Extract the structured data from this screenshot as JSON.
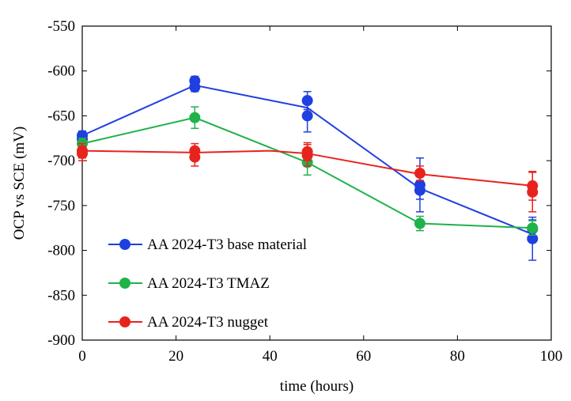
{
  "chart_data": {
    "type": "line",
    "xlabel": "time (hours)",
    "ylabel": "OCP vs SCE (mV)",
    "xlim": [
      0,
      100
    ],
    "ylim": [
      -900,
      -550
    ],
    "xticks": [
      0,
      20,
      40,
      60,
      80,
      100
    ],
    "yticks": [
      -900,
      -850,
      -800,
      -750,
      -700,
      -650,
      -600,
      -550
    ],
    "grid": false,
    "legend_position": "bottom-left",
    "series": [
      {
        "name": "AA 2024-T3 base material",
        "color": "#1f3fe0",
        "line": [
          [
            0,
            -672
          ],
          [
            24,
            -616
          ],
          [
            48,
            -641
          ],
          [
            72,
            -731
          ],
          [
            96,
            -782
          ]
        ],
        "points": [
          {
            "x": 0,
            "y": -672,
            "err": 5
          },
          {
            "x": 0,
            "y": -676,
            "err": 5
          },
          {
            "x": 24,
            "y": -611,
            "err": 5
          },
          {
            "x": 24,
            "y": -618,
            "err": 5
          },
          {
            "x": 48,
            "y": -633,
            "err": 10
          },
          {
            "x": 48,
            "y": -650,
            "err": 18
          },
          {
            "x": 72,
            "y": -727,
            "err": 30
          },
          {
            "x": 72,
            "y": -733,
            "err": 10
          },
          {
            "x": 96,
            "y": -776,
            "err": 10
          },
          {
            "x": 96,
            "y": -787,
            "err": 24
          }
        ]
      },
      {
        "name": "AA 2024-T3 TMAZ",
        "color": "#1fb24a",
        "line": [
          [
            0,
            -681
          ],
          [
            24,
            -652
          ],
          [
            48,
            -702
          ],
          [
            72,
            -770
          ],
          [
            96,
            -775
          ]
        ],
        "points": [
          {
            "x": 0,
            "y": -681,
            "err": 6
          },
          {
            "x": 24,
            "y": -652,
            "err": 12
          },
          {
            "x": 48,
            "y": -702,
            "err": 14
          },
          {
            "x": 72,
            "y": -770,
            "err": 8
          },
          {
            "x": 96,
            "y": -775,
            "err": 8
          }
        ]
      },
      {
        "name": "AA 2024-T3 nugget",
        "color": "#e8231d",
        "line": [
          [
            0,
            -689
          ],
          [
            24,
            -691
          ],
          [
            40,
            -689
          ],
          [
            48,
            -692
          ],
          [
            72,
            -715
          ],
          [
            96,
            -728
          ]
        ],
        "points": [
          {
            "x": 0,
            "y": -689,
            "err": 8
          },
          {
            "x": 0,
            "y": -692,
            "err": 8
          },
          {
            "x": 24,
            "y": -689,
            "err": 8
          },
          {
            "x": 24,
            "y": -696,
            "err": 10
          },
          {
            "x": 48,
            "y": -690,
            "err": 10
          },
          {
            "x": 48,
            "y": -694,
            "err": 12
          },
          {
            "x": 72,
            "y": -714,
            "err": 8
          },
          {
            "x": 96,
            "y": -728,
            "err": 16
          },
          {
            "x": 96,
            "y": -735,
            "err": 22
          }
        ]
      }
    ]
  }
}
